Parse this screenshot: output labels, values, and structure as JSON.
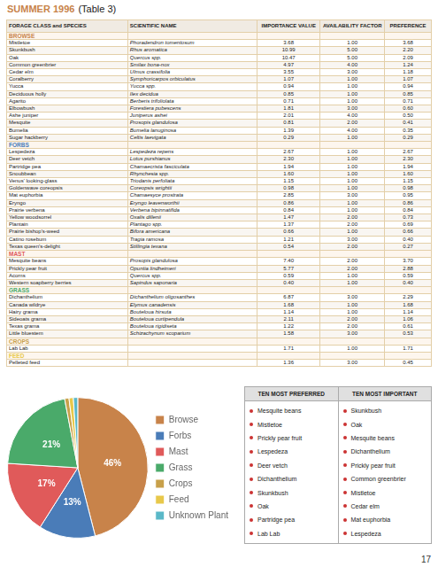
{
  "chart_data": [
    {
      "type": "table",
      "title": "SUMMER 1996",
      "subtitle": "(Table 3)",
      "categories": [
        "FORAGE CLASS and SPECIES",
        "SCIENTIFIC NAME",
        "IMPORTANCE VALUE",
        "AVAILABILITY FACTOR",
        "PREFERENCE"
      ],
      "series": [
        {
          "name": "BROWSE",
          "color": "#c8834a",
          "values": [
            [
              "Mistletoe",
              "Phoradendron tomentosum",
              "3.68",
              "1.00",
              "3.68"
            ],
            [
              "Skunkbush",
              "Rhus aromatica",
              "10.99",
              "5.00",
              "2.20"
            ],
            [
              "Oak",
              "Quercus spp.",
              "10.47",
              "5.00",
              "2.09"
            ],
            [
              "Common greenbrier",
              "Smilax bona-nox",
              "4.97",
              "4.00",
              "1.24"
            ],
            [
              "Cedar elm",
              "Ulmus crassifolia",
              "3.55",
              "3.00",
              "1.18"
            ],
            [
              "Coralberry",
              "Symphoricarpos orbiculatus",
              "1.07",
              "1.00",
              "1.07"
            ],
            [
              "Yucca",
              "Yucca spp.",
              "0.94",
              "1.00",
              "0.94"
            ],
            [
              "Deciduous holly",
              "Ilex decidua",
              "0.85",
              "1.00",
              "0.85"
            ],
            [
              "Agarito",
              "Berberis trifoliolata",
              "0.71",
              "1.00",
              "0.71"
            ],
            [
              "Elbowbush",
              "Forestiera pubescens",
              "1.81",
              "3.00",
              "0.60"
            ],
            [
              "Ashe juniper",
              "Juniperus ashei",
              "2.01",
              "4.00",
              "0.50"
            ],
            [
              "Mesquite",
              "Prosopis glandulosa",
              "0.81",
              "2.00",
              "0.41"
            ],
            [
              "Bumelia",
              "Bumelia lanuginosa",
              "1.39",
              "4.00",
              "0.35"
            ],
            [
              "Sugar hackberry",
              "Celtis laevigata",
              "0.29",
              "1.00",
              "0.29"
            ]
          ]
        },
        {
          "name": "FORBS",
          "color": "#4a7cb8",
          "values": [
            [
              "Lespedeza",
              "Lespedeza repens",
              "2.67",
              "1.00",
              "2.67"
            ],
            [
              "Deer vetch",
              "Lotus purshianus",
              "2.30",
              "1.00",
              "2.30"
            ],
            [
              "Partridge pea",
              "Chamaecrista fasciculata",
              "1.94",
              "1.00",
              "1.94"
            ],
            [
              "Snoubbean",
              "Rhynchesia spp.",
              "1.60",
              "1.00",
              "1.60"
            ],
            [
              "Venus' looking-glass",
              "Triodanis perfoliata",
              "1.15",
              "1.00",
              "1.15"
            ],
            [
              "Goldenwave coreopsis",
              "Coreopsis wrightii",
              "0.98",
              "1.00",
              "0.98"
            ],
            [
              "Mat euphorbia",
              "Chamaesyce prostrata",
              "2.85",
              "3.00",
              "0.95"
            ],
            [
              "Eryngo",
              "Eryngo leavenworthii",
              "0.86",
              "1.00",
              "0.86"
            ],
            [
              "Prairie verbena",
              "Verbena bipinnatifida",
              "0.84",
              "1.00",
              "0.84"
            ],
            [
              "Yellow woodsorrel",
              "Oxalis dillenii",
              "1.47",
              "2.00",
              "0.73"
            ],
            [
              "Plantain",
              "Plantago spp.",
              "1.37",
              "2.00",
              "0.69"
            ],
            [
              "Prairie bishop's-weed",
              "Bifora americana",
              "0.66",
              "1.00",
              "0.66"
            ],
            [
              "Catino rosebum",
              "Tragia ramosa",
              "1.21",
              "3.00",
              "0.40"
            ],
            [
              "Texas queen's-delight",
              "Stillingia texana",
              "0.54",
              "2.00",
              "0.27"
            ]
          ]
        },
        {
          "name": "MAST",
          "color": "#e05a5a",
          "values": [
            [
              "Mesquite beans",
              "Prosopis glandulosa",
              "7.40",
              "2.00",
              "3.70"
            ],
            [
              "Prickly pear fruit",
              "Opuntia lindheimeri",
              "5.77",
              "2.00",
              "2.88"
            ],
            [
              "Acorns",
              "Quercus spp.",
              "0.59",
              "1.00",
              "0.59"
            ],
            [
              "Western soapberry berries",
              "Sapindus saponaria",
              "0.40",
              "1.00",
              "0.40"
            ]
          ]
        },
        {
          "name": "GRASS",
          "color": "#4aaa6a",
          "values": [
            [
              "Dichanthelium",
              "Dichanthelium oligosanthes",
              "6.87",
              "3.00",
              "2.29"
            ],
            [
              "Canada wildrye",
              "Elymus canadensis",
              "1.68",
              "1.00",
              "1.68"
            ],
            [
              "Hairy grama",
              "Bouteloua hirsuta",
              "1.14",
              "1.00",
              "1.14"
            ],
            [
              "Sideoats grama",
              "Bouteloua curtipendula",
              "2.11",
              "2.00",
              "1.06"
            ],
            [
              "Texas grama",
              "Bouteloua rigidiseta",
              "1.22",
              "2.00",
              "0.61"
            ],
            [
              "Little bluestem",
              "Schizachynum scoparium",
              "1.58",
              "3.00",
              "0.53"
            ]
          ]
        },
        {
          "name": "CROPS",
          "color": "#c8a04a",
          "values": [
            [
              "Lab Lab",
              null,
              "1.71",
              "1.00",
              "1.71"
            ]
          ]
        },
        {
          "name": "FEED",
          "color": "#e8c84a",
          "values": [
            [
              "Pelleted feed",
              null,
              "1.36",
              "3.00",
              "0.45"
            ]
          ]
        }
      ],
      "annotations": [
        "17"
      ]
    },
    {
      "type": "pie",
      "categories": [
        "Browse",
        "Forbs",
        "Mast",
        "Grass",
        "Crops",
        "Feed",
        "Unknown Plant"
      ],
      "values": [
        46,
        13,
        17,
        21,
        1,
        1,
        1
      ],
      "colors": [
        "#c8834a",
        "#4a7cb8",
        "#e05a5a",
        "#4aaa6a",
        "#c8a04a",
        "#e8c84a",
        "#5ab8c8"
      ],
      "value_labels": [
        "46%",
        "13%",
        "17%",
        "21%",
        null,
        null,
        null
      ],
      "data_labels": true,
      "legend": "right"
    },
    {
      "type": "list",
      "series": [
        {
          "name": "TEN MOST PREFERRED",
          "color": "#cc3333",
          "values": [
            "Mesquite beans",
            "Mistletoe",
            "Prickly pear fruit",
            "Lespedeza",
            "Deer vetch",
            "Dichanthelium",
            "Skunkbush",
            "Oak",
            "Partridge pea",
            "Lab Lab"
          ]
        },
        {
          "name": "TEN MOST IMPORTANT",
          "color": "#cc3333",
          "values": [
            "Skunkbush",
            "Oak",
            "Mesquite beans",
            "Dichanthelium",
            "Prickly pear fruit",
            "Common greenbrier",
            "Mistletoe",
            "Cedar elm",
            "Mat euphorbia",
            "Lespedeza"
          ]
        }
      ]
    }
  ]
}
